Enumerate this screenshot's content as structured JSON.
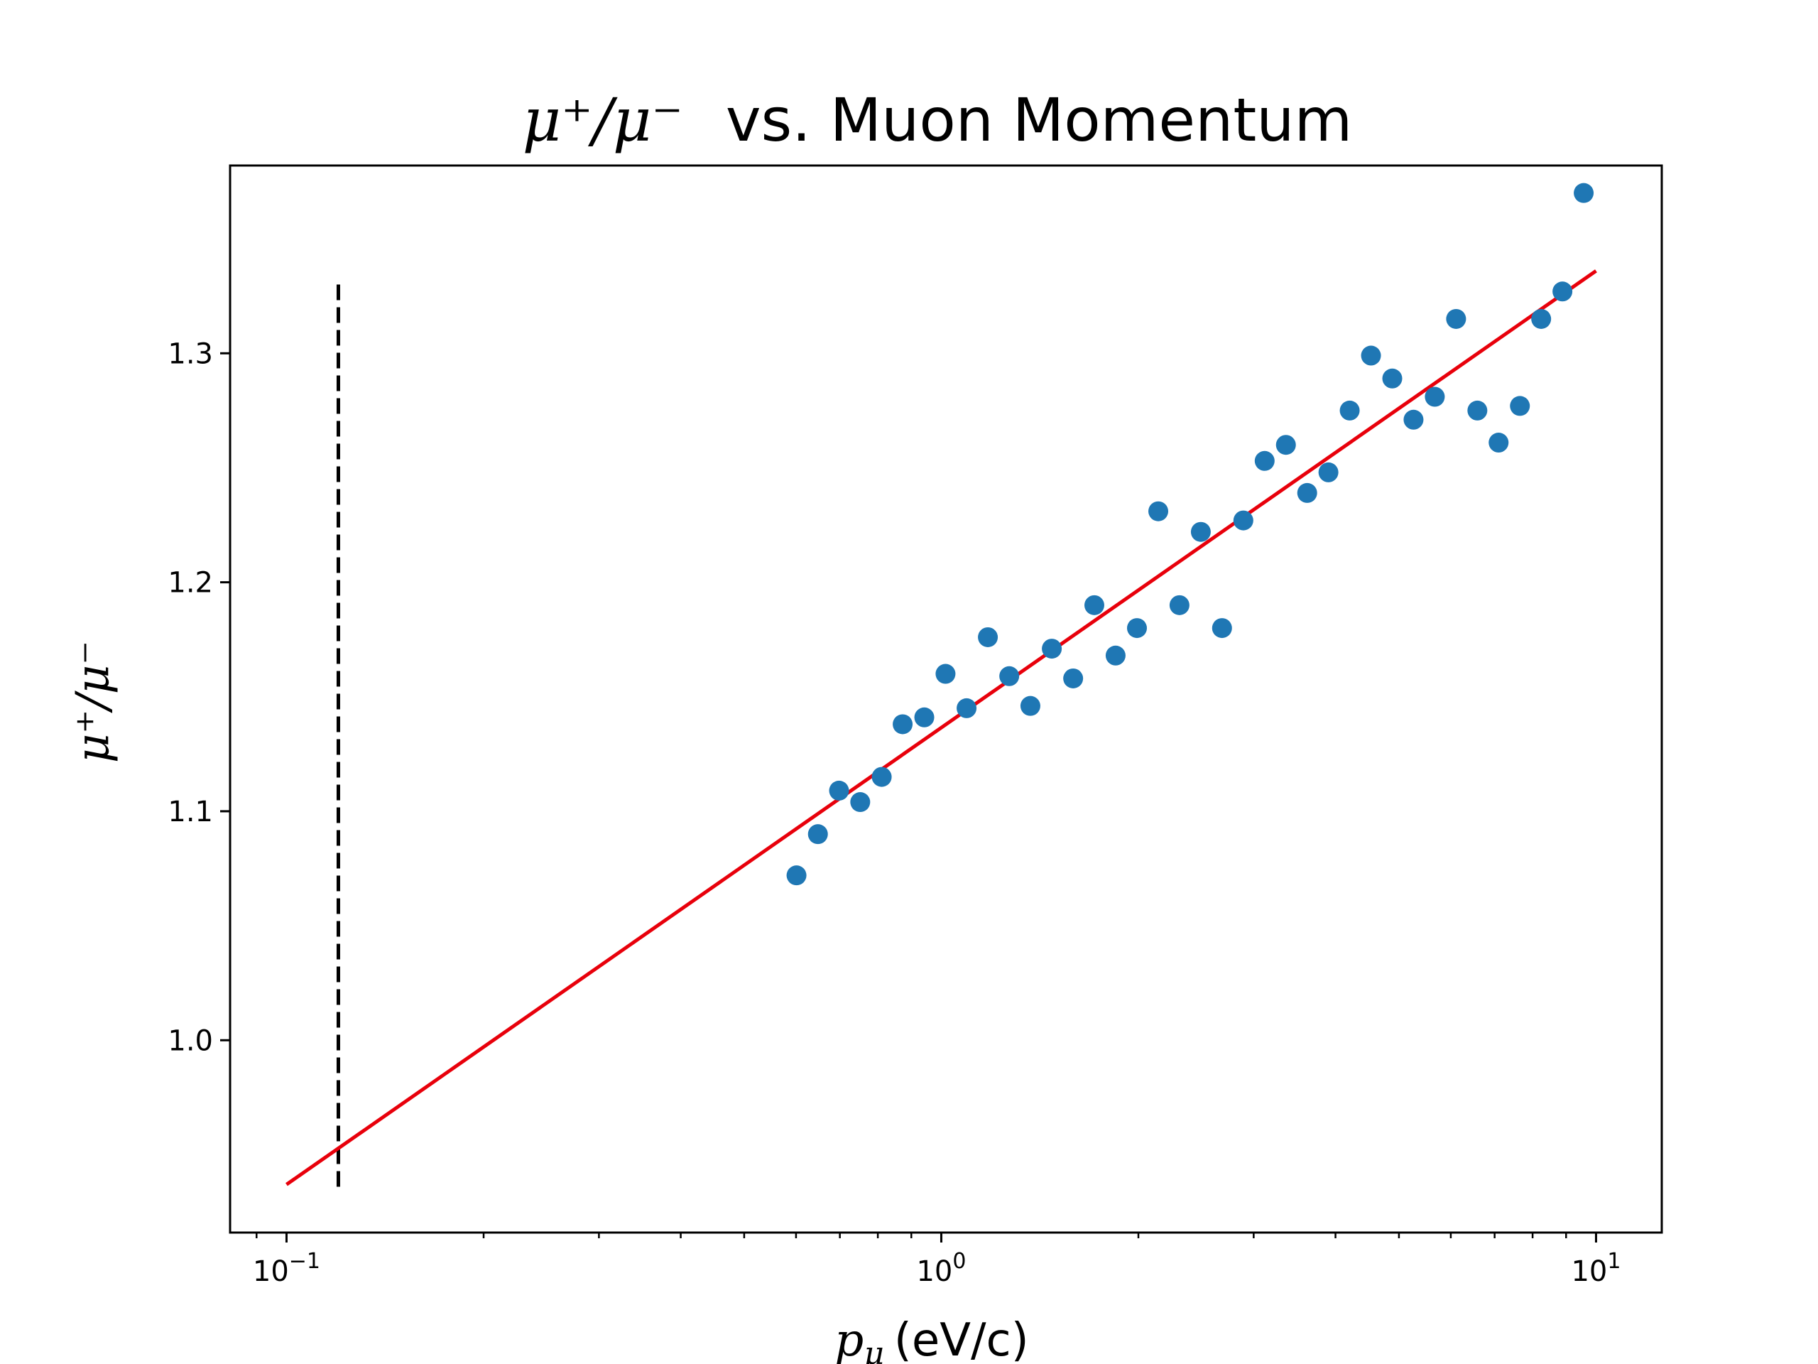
{
  "chart_data": {
    "type": "scatter",
    "title_math": "μ⁺/μ⁻",
    "title_text": "vs. Muon Momentum",
    "xlabel_math": "p",
    "xlabel_sub": "μ",
    "xlabel_unit": "(eV/c)",
    "ylabel": "μ⁺/μ⁻",
    "xscale": "log",
    "xlim": [
      0.082,
      12.6
    ],
    "ylim": [
      0.916,
      1.382
    ],
    "grid": false,
    "x_ticks": [
      {
        "value": 0.1,
        "base": "10",
        "exp": "−1"
      },
      {
        "value": 1,
        "base": "10",
        "exp": "0"
      },
      {
        "value": 10,
        "base": "10",
        "exp": "1"
      }
    ],
    "y_ticks": [
      {
        "value": 1.0,
        "label": "1.0"
      },
      {
        "value": 1.1,
        "label": "1.1"
      },
      {
        "value": 1.2,
        "label": "1.2"
      },
      {
        "value": 1.3,
        "label": "1.3"
      }
    ],
    "points": {
      "color": "#1f77b4",
      "x": [
        0.601,
        0.648,
        0.698,
        0.752,
        0.811,
        0.873,
        0.942,
        1.015,
        1.093,
        1.178,
        1.27,
        1.368,
        1.475,
        1.59,
        1.713,
        1.846,
        1.99,
        2.145,
        2.311,
        2.491,
        2.684,
        2.893,
        3.118,
        3.36,
        3.621,
        3.902,
        4.205,
        4.532,
        4.884,
        5.263,
        5.672,
        6.113,
        6.588,
        7.099,
        7.651,
        8.245,
        8.885,
        9.575
      ],
      "y": [
        1.072,
        1.09,
        1.109,
        1.104,
        1.115,
        1.138,
        1.141,
        1.16,
        1.145,
        1.176,
        1.159,
        1.146,
        1.171,
        1.158,
        1.19,
        1.168,
        1.18,
        1.231,
        1.19,
        1.222,
        1.18,
        1.227,
        1.253,
        1.26,
        1.239,
        1.248,
        1.275,
        1.299,
        1.289,
        1.271,
        1.281,
        1.315,
        1.275,
        1.261,
        1.277,
        1.315,
        1.327,
        1.37
      ]
    },
    "fit_line": {
      "color": "#e8000b",
      "x": [
        0.1,
        10
      ],
      "y": [
        0.937,
        1.336
      ]
    },
    "vline": {
      "color": "#000000",
      "style": "dashed",
      "x": 0.12,
      "y_range": [
        0.936,
        1.332
      ]
    }
  }
}
